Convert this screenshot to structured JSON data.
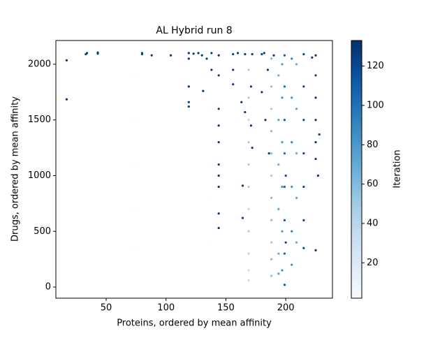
{
  "chart_data": {
    "type": "scatter",
    "title": "AL Hybrid run 8",
    "xlabel": "Proteins, ordered by mean affinity",
    "ylabel": "Drugs, ordered by mean affinity",
    "colorbar_label": "Iteration",
    "xlim": [
      8,
      239
    ],
    "ylim": [
      -100,
      2213
    ],
    "clim": [
      2,
      133
    ],
    "xticks": [
      50,
      100,
      150,
      200
    ],
    "yticks": [
      0,
      500,
      1000,
      1500,
      2000
    ],
    "cticks": [
      20,
      40,
      60,
      80,
      100,
      120
    ],
    "colormap": [
      "#f7fbff",
      "#deebf7",
      "#c6dbef",
      "#9ecae1",
      "#6baed6",
      "#4292c6",
      "#2171b5",
      "#08519c",
      "#08306b"
    ],
    "x": [
      17,
      17,
      33,
      34,
      43,
      43,
      80,
      80,
      88,
      104,
      119,
      119,
      119,
      119,
      119,
      123,
      127,
      130,
      131,
      134,
      138,
      138,
      144,
      144,
      144,
      144,
      144,
      144,
      144,
      144,
      144,
      144,
      156,
      156,
      156,
      160,
      163,
      164,
      164,
      166,
      166,
      171,
      171,
      172,
      172,
      180,
      180,
      182,
      183,
      185,
      186,
      190,
      73,
      73,
      73,
      73,
      73,
      138,
      138,
      138,
      138,
      169,
      169,
      169,
      169,
      169,
      169,
      169,
      169,
      169,
      169,
      169,
      188,
      188,
      188,
      188,
      188,
      188,
      188,
      188,
      188,
      188,
      188,
      194,
      194,
      194,
      194,
      194,
      194,
      197,
      197,
      197,
      197,
      197,
      197,
      199,
      199,
      199,
      199,
      199,
      199,
      199,
      199,
      200,
      200,
      205,
      205,
      205,
      205,
      205,
      205,
      209,
      209,
      209,
      209,
      209,
      215,
      215,
      215,
      215,
      215,
      215,
      215,
      225,
      225,
      225,
      225,
      225,
      225,
      225,
      227,
      228,
      222
    ],
    "y": [
      2035,
      1685,
      2090,
      2100,
      2095,
      2105,
      2100,
      2090,
      2080,
      2080,
      2100,
      2050,
      1800,
      1660,
      1620,
      2095,
      2100,
      2080,
      1760,
      2050,
      2100,
      1950,
      2080,
      1900,
      1600,
      1450,
      1300,
      1100,
      1000,
      900,
      660,
      530,
      2090,
      1950,
      1820,
      2100,
      1660,
      910,
      620,
      2090,
      1570,
      1800,
      1450,
      1250,
      2090,
      2090,
      1750,
      2100,
      1500,
      1950,
      1200,
      2080,
      1900,
      1500,
      1100,
      700,
      350,
      1600,
      1100,
      800,
      400,
      1950,
      1700,
      1500,
      1300,
      1100,
      900,
      700,
      500,
      300,
      150,
      60,
      2050,
      1800,
      1600,
      1400,
      1200,
      1000,
      800,
      600,
      400,
      250,
      100,
      1900,
      1500,
      1100,
      700,
      300,
      120,
      2000,
      1700,
      1300,
      900,
      500,
      150,
      2080,
      1800,
      1500,
      1200,
      900,
      600,
      300,
      20,
      1000,
      400,
      2050,
      1700,
      1300,
      900,
      500,
      200,
      2000,
      1600,
      1200,
      800,
      400,
      2090,
      1800,
      1500,
      1200,
      900,
      600,
      350,
      2080,
      1900,
      1700,
      1500,
      1300,
      1150,
      330,
      1000,
      1370,
      2060
    ],
    "color_values": [
      130,
      130,
      125,
      125,
      125,
      125,
      125,
      125,
      128,
      128,
      128,
      128,
      128,
      128,
      128,
      128,
      128,
      128,
      128,
      128,
      128,
      128,
      128,
      128,
      128,
      128,
      128,
      128,
      128,
      128,
      128,
      128,
      128,
      128,
      128,
      128,
      128,
      128,
      128,
      128,
      128,
      128,
      128,
      128,
      128,
      128,
      128,
      128,
      128,
      128,
      128,
      128,
      2,
      2,
      2,
      2,
      2,
      2,
      2,
      2,
      2,
      45,
      50,
      40,
      45,
      50,
      45,
      40,
      45,
      40,
      35,
      35,
      60,
      55,
      50,
      60,
      55,
      50,
      60,
      55,
      50,
      60,
      55,
      70,
      75,
      70,
      75,
      70,
      75,
      80,
      85,
      80,
      85,
      80,
      85,
      110,
      105,
      110,
      105,
      110,
      115,
      110,
      115,
      120,
      120,
      90,
      85,
      90,
      85,
      90,
      85,
      70,
      75,
      70,
      75,
      70,
      120,
      125,
      120,
      125,
      120,
      125,
      120,
      128,
      128,
      128,
      128,
      128,
      128,
      128,
      128,
      128,
      128
    ]
  }
}
